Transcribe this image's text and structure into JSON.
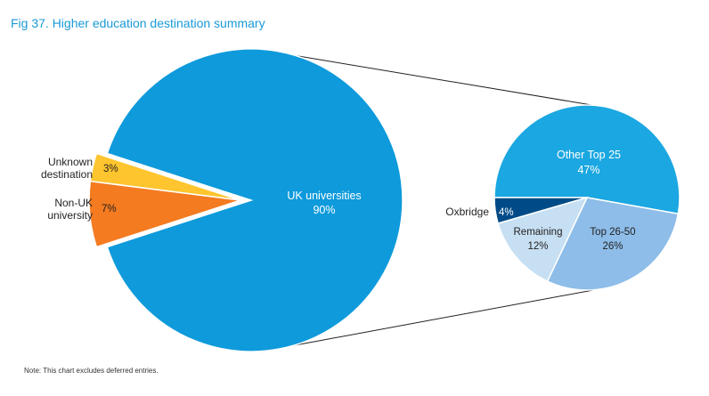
{
  "title": "Fig 37. Higher education destination summary",
  "note": "Note: This chart excludes deferred entries.",
  "colors": {
    "uk": "#0e9adb",
    "unknown": "#fec52e",
    "non_uk": "#f47b20",
    "other_top25": "#1ba7e1",
    "oxbridge": "#004b87",
    "remaining": "#c6dff2",
    "top2650": "#8dbde8"
  },
  "chart_data": [
    {
      "type": "pie",
      "slices": [
        {
          "label": "UK universities",
          "value": 90,
          "value_label": "90%"
        },
        {
          "label_lines": [
            "Unknown",
            "destination"
          ],
          "value": 3,
          "value_label": "3%"
        },
        {
          "label_lines": [
            "Non-UK",
            "university"
          ],
          "value": 7,
          "value_label": "7%"
        }
      ]
    },
    {
      "type": "pie",
      "slices": [
        {
          "label": "Other Top 25",
          "value": 47,
          "value_label": "47%"
        },
        {
          "label": "Oxbridge",
          "value": 4,
          "value_label": "4%"
        },
        {
          "label": "Remaining",
          "value": 12,
          "value_label": "12%"
        },
        {
          "label": "Top 26-50",
          "value": 26,
          "value_label": "26%"
        }
      ]
    }
  ]
}
